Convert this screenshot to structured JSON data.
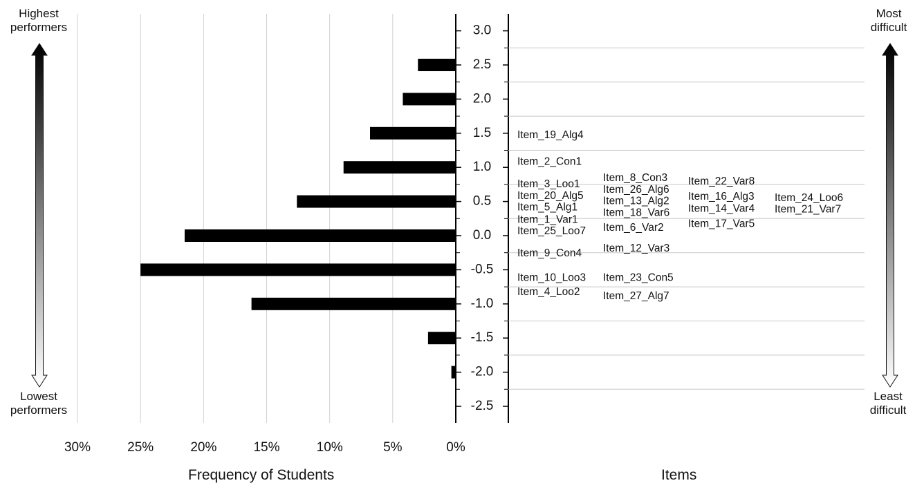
{
  "chart_data": {
    "type": "bar",
    "title": "",
    "left_panel": {
      "xlabel": "Frequency of Students",
      "xlim": [
        30,
        0
      ],
      "xticks": [
        "30%",
        "25%",
        "20%",
        "15%",
        "10%",
        "5%",
        "0%"
      ],
      "grid": true,
      "bars": [
        {
          "level": 2.5,
          "value": 3.0
        },
        {
          "level": 2.0,
          "value": 4.2
        },
        {
          "level": 1.5,
          "value": 6.8
        },
        {
          "level": 1.0,
          "value": 8.9
        },
        {
          "level": 0.5,
          "value": 12.6
        },
        {
          "level": 0.0,
          "value": 21.5
        },
        {
          "level": -0.5,
          "value": 25.0
        },
        {
          "level": -1.0,
          "value": 16.2
        },
        {
          "level": -1.5,
          "value": 2.2
        },
        {
          "level": -2.0,
          "value": 0.35
        }
      ]
    },
    "center_axis": {
      "ylim": [
        -2.9,
        3.2
      ],
      "yticks": [
        "3.0",
        "2.5",
        "2.0",
        "1.5",
        "1.0",
        "0.5",
        "0.0",
        "-0.5",
        "-1.0",
        "-1.5",
        "-2.0",
        "-2.5"
      ]
    },
    "right_panel": {
      "xlabel": "Items",
      "items": [
        {
          "name": "Item_19_Alg4",
          "column": 1,
          "level": 1.47
        },
        {
          "name": "Item_2_Con1",
          "column": 1,
          "level": 1.08
        },
        {
          "name": "Item_3_Loo1",
          "column": 1,
          "level": 0.75
        },
        {
          "name": "Item_20_Alg5",
          "column": 1,
          "level": 0.58
        },
        {
          "name": "Item_5_Alg1",
          "column": 1,
          "level": 0.41
        },
        {
          "name": "Item_1_Var1",
          "column": 1,
          "level": 0.23
        },
        {
          "name": "Item_25_Loo7",
          "column": 1,
          "level": 0.06
        },
        {
          "name": "Item_9_Con4",
          "column": 1,
          "level": -0.26
        },
        {
          "name": "Item_10_Loo3",
          "column": 1,
          "level": -0.62
        },
        {
          "name": "Item_4_Loo2",
          "column": 1,
          "level": -0.83
        },
        {
          "name": "Item_8_Con3",
          "column": 2,
          "level": 0.84
        },
        {
          "name": "Item_26_Alg6",
          "column": 2,
          "level": 0.67
        },
        {
          "name": "Item_13_Alg2",
          "column": 2,
          "level": 0.5
        },
        {
          "name": "Item_18_Var6",
          "column": 2,
          "level": 0.33
        },
        {
          "name": "Item_6_Var2",
          "column": 2,
          "level": 0.11
        },
        {
          "name": "Item_12_Var3",
          "column": 2,
          "level": -0.19
        },
        {
          "name": "Item_23_Con5",
          "column": 2,
          "level": -0.62
        },
        {
          "name": "Item_27_Alg7",
          "column": 2,
          "level": -0.89
        },
        {
          "name": "Item_22_Var8",
          "column": 3,
          "level": 0.79
        },
        {
          "name": "Item_16_Alg3",
          "column": 3,
          "level": 0.57
        },
        {
          "name": "Item_14_Var4",
          "column": 3,
          "level": 0.39
        },
        {
          "name": "Item_17_Var5",
          "column": 3,
          "level": 0.17
        },
        {
          "name": "Item_24_Loo6",
          "column": 4,
          "level": 0.55
        },
        {
          "name": "Item_21_Var7",
          "column": 4,
          "level": 0.38
        }
      ]
    },
    "left_arrow": {
      "top_label": "Highest\nperformers",
      "bottom_label": "Lowest\nperformers"
    },
    "right_arrow": {
      "top_label": "Most\ndifficult",
      "bottom_label": "Least\ndifficult"
    }
  }
}
